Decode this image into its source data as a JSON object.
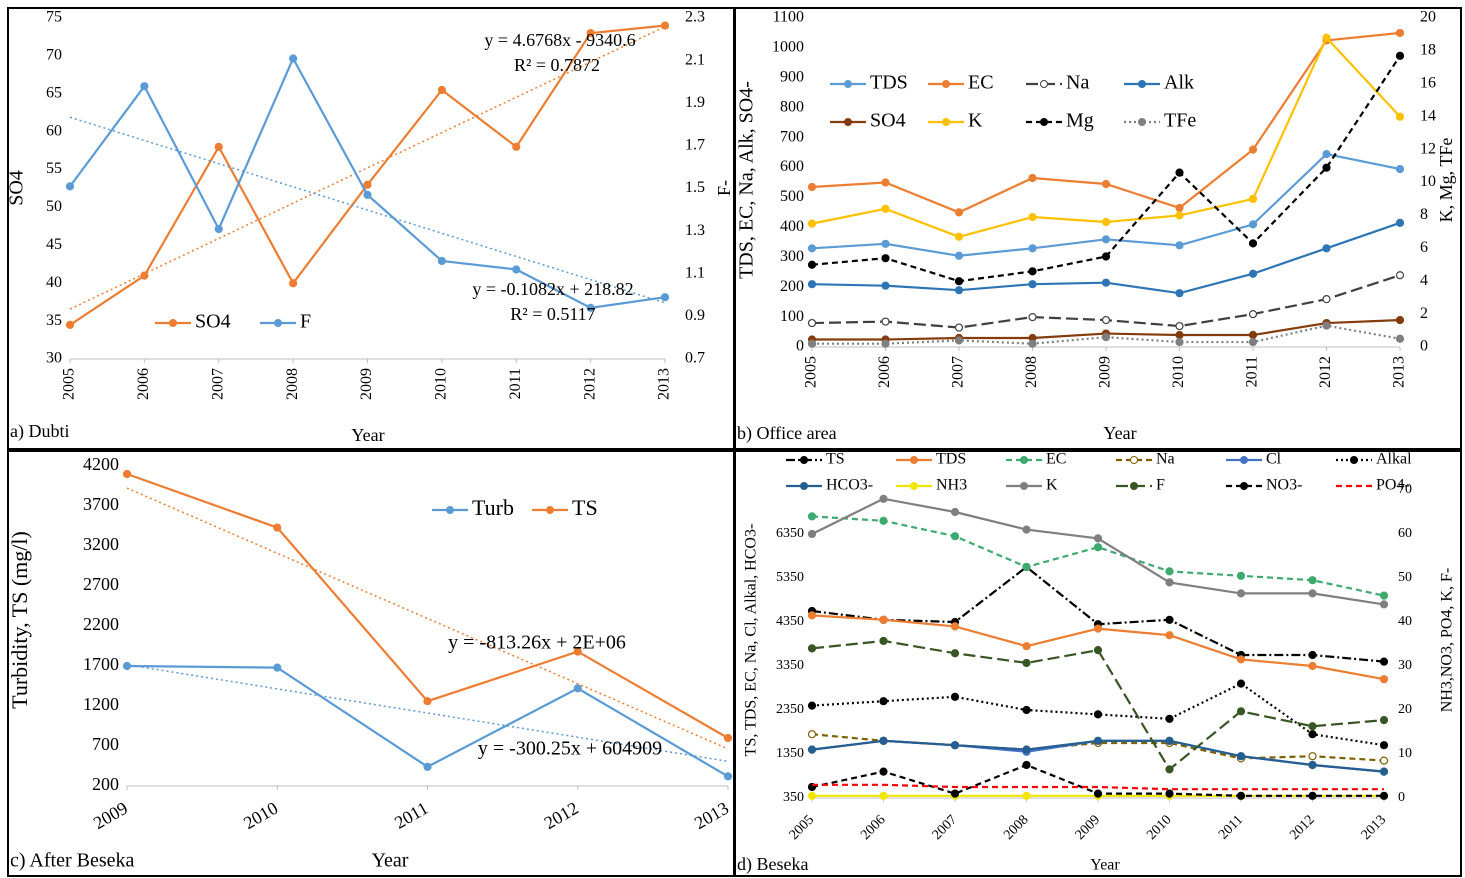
{
  "chart_data": [
    {
      "type": "line",
      "panel_label": "a) Dubti",
      "x_label": "Year",
      "y_label": "SO4",
      "y2_label": "F-",
      "categories": [
        "2005",
        "2006",
        "2007",
        "2008",
        "2009",
        "2010",
        "2011",
        "2012",
        "2013"
      ],
      "series": [
        {
          "name": "SO4",
          "color": "#ed7d31",
          "values": [
            34.5,
            41,
            58,
            40,
            53,
            65.5,
            58,
            73,
            74
          ],
          "trendline": true
        },
        {
          "name": "F",
          "color": "#5b9bd5",
          "axis": "y2",
          "values": [
            1.51,
            1.98,
            1.31,
            2.11,
            1.47,
            1.16,
            1.12,
            0.94,
            0.99
          ],
          "trendline": true
        }
      ],
      "ylim": [
        30,
        75
      ],
      "yticks": [
        30,
        35,
        40,
        45,
        50,
        55,
        60,
        65,
        70,
        75
      ],
      "y2lim": [
        0.7,
        2.3
      ],
      "y2ticks": [
        0.7,
        0.9,
        1.1,
        1.3,
        1.5,
        1.7,
        1.9,
        2.1,
        2.3
      ],
      "annotations": [
        "y = 4.6768x - 9340.6",
        "R² = 0.7872",
        "y = -0.1082x + 218.82",
        "R² = 0.5117"
      ],
      "grid": false
    },
    {
      "type": "line",
      "panel_label": "b) Office area",
      "x_label": "Year",
      "y_label": "TDS, EC, Na, Alk, SO4-",
      "y2_label": "K, Mg, TFe",
      "categories": [
        "2005",
        "2006",
        "2007",
        "2008",
        "2009",
        "2010",
        "2011",
        "2012",
        "2013"
      ],
      "series": [
        {
          "name": "TDS",
          "color": "#5b9bd5",
          "values": [
            330,
            345,
            305,
            330,
            360,
            340,
            410,
            645,
            595
          ]
        },
        {
          "name": "EC",
          "color": "#ed7d31",
          "values": [
            535,
            550,
            450,
            565,
            545,
            465,
            660,
            1025,
            1050
          ]
        },
        {
          "name": "Na",
          "color": "#404040",
          "dash": "long",
          "marker": "open",
          "values": [
            80,
            85,
            65,
            100,
            90,
            70,
            110,
            160,
            240
          ]
        },
        {
          "name": "Alk",
          "color": "#2e75b6",
          "values": [
            210,
            205,
            190,
            210,
            215,
            180,
            245,
            330,
            415
          ]
        },
        {
          "name": "SO4",
          "color": "#843c0c",
          "values": [
            25,
            25,
            30,
            30,
            45,
            40,
            40,
            80,
            90
          ]
        },
        {
          "name": "K",
          "color": "#ffc000",
          "axis": "y2",
          "values": [
            7.5,
            8.4,
            6.7,
            7.9,
            7.6,
            8.0,
            9.0,
            18.8,
            14.0
          ]
        },
        {
          "name": "Mg",
          "color": "#000000",
          "axis": "y2",
          "dash": "dashed",
          "values": [
            5.0,
            5.4,
            4.0,
            4.6,
            5.5,
            10.6,
            6.3,
            10.9,
            17.7
          ]
        },
        {
          "name": "TFe",
          "color": "#7f7f7f",
          "axis": "y2",
          "dash": "dotted",
          "values": [
            0.2,
            0.2,
            0.4,
            0.2,
            0.6,
            0.3,
            0.3,
            1.3,
            0.5
          ]
        }
      ],
      "ylim": [
        0,
        1100
      ],
      "yticks": [
        0,
        100,
        200,
        300,
        400,
        500,
        600,
        700,
        800,
        900,
        1000,
        1100
      ],
      "y2lim": [
        0,
        20
      ],
      "y2ticks": [
        0,
        2,
        4,
        6,
        8,
        10,
        12,
        14,
        16,
        18,
        20
      ],
      "grid": false
    },
    {
      "type": "line",
      "panel_label": "c) After Beseka",
      "x_label": "Year",
      "y_label": "Turbidity, TS (mg/l)",
      "categories": [
        "2009",
        "2010",
        "2011",
        "2012",
        "2013"
      ],
      "series": [
        {
          "name": "Turb",
          "color": "#5b9bd5",
          "values": [
            1700,
            1680,
            440,
            1420,
            320
          ],
          "trendline": true
        },
        {
          "name": "TS",
          "color": "#ed7d31",
          "values": [
            4100,
            3430,
            1260,
            1880,
            800
          ],
          "trendline": true
        }
      ],
      "ylim": [
        200,
        4200
      ],
      "yticks": [
        200,
        700,
        1200,
        1700,
        2200,
        2700,
        3200,
        3700,
        4200
      ],
      "annotations": [
        "y = -813.26x + 2E+06",
        "y = -300.25x + 604909"
      ],
      "grid": false
    },
    {
      "type": "line",
      "panel_label": "d) Beseka",
      "x_label": "Year",
      "y_label": "TS, TDS, EC, Na, Cl, Alkal, HCO3-",
      "y2_label": "NH3,NO3, PO4, K, F-",
      "categories": [
        "2005",
        "2006",
        "2007",
        "2008",
        "2009",
        "2010",
        "2011",
        "2012",
        "2013"
      ],
      "series": [
        {
          "name": "TS",
          "color": "#000000",
          "dash": "dashdot",
          "values": [
            4600,
            4400,
            4350,
            5600,
            4300,
            4400,
            3600,
            3600,
            3450
          ]
        },
        {
          "name": "TDS",
          "color": "#ed7d31",
          "values": [
            4500,
            4400,
            4250,
            3800,
            4200,
            4050,
            3500,
            3350,
            3050
          ]
        },
        {
          "name": "EC",
          "color": "#3daa6e",
          "dash": "dashed",
          "values": [
            6750,
            6650,
            6300,
            5600,
            6050,
            5500,
            5400,
            5300,
            4950
          ]
        },
        {
          "name": "Na",
          "color": "#7f6000",
          "dash": "dashed",
          "marker": "open",
          "values": [
            1800,
            1650,
            1550,
            1450,
            1600,
            1600,
            1250,
            1300,
            1200
          ]
        },
        {
          "name": "Cl",
          "color": "#4472c4",
          "values": [
            1450,
            1650,
            1550,
            1400,
            1650,
            1650,
            1300,
            1100,
            950
          ]
        },
        {
          "name": "Alkal",
          "color": "#000000",
          "dash": "dotted",
          "values": [
            2450,
            2550,
            2650,
            2350,
            2250,
            2150,
            2950,
            1800,
            1550
          ]
        },
        {
          "name": "HCO3-",
          "color": "#255e91",
          "values": [
            1450,
            1650,
            1550,
            1450,
            1650,
            1650,
            1300,
            1100,
            950
          ]
        },
        {
          "name": "NH3",
          "color": "#f2e600",
          "axis": "y2",
          "values": [
            0.5,
            0.5,
            0.5,
            0.5,
            0.5,
            0.5,
            0.5,
            0.5,
            0.5
          ]
        },
        {
          "name": "K",
          "color": "#7f7f7f",
          "axis": "y2",
          "values": [
            60,
            68,
            65,
            61,
            59,
            49,
            46.5,
            46.5,
            44
          ]
        },
        {
          "name": "F",
          "color": "#375623",
          "axis": "y2",
          "dash": "long",
          "values": [
            34,
            35.7,
            32.9,
            30.7,
            33.6,
            6.5,
            19.7,
            16.3,
            17.7
          ]
        },
        {
          "name": "NO3-",
          "color": "#000000",
          "axis": "y2",
          "dash": "dashed",
          "values": [
            2.5,
            6,
            1,
            7.5,
            1,
            1,
            0.5,
            0.5,
            0.5
          ]
        },
        {
          "name": "PO4-",
          "color": "#ff0000",
          "axis": "y2",
          "dash": "dashed",
          "marker": "none",
          "values": [
            3,
            3,
            2.5,
            2.5,
            2.5,
            2,
            2,
            2,
            2
          ]
        }
      ],
      "ylim": [
        350,
        7350
      ],
      "yticks": [
        350,
        1350,
        2350,
        3350,
        4350,
        5350,
        6350
      ],
      "y2lim": [
        0,
        70
      ],
      "y2ticks": [
        0,
        10,
        20,
        30,
        40,
        50,
        60,
        70
      ],
      "grid": false
    }
  ]
}
